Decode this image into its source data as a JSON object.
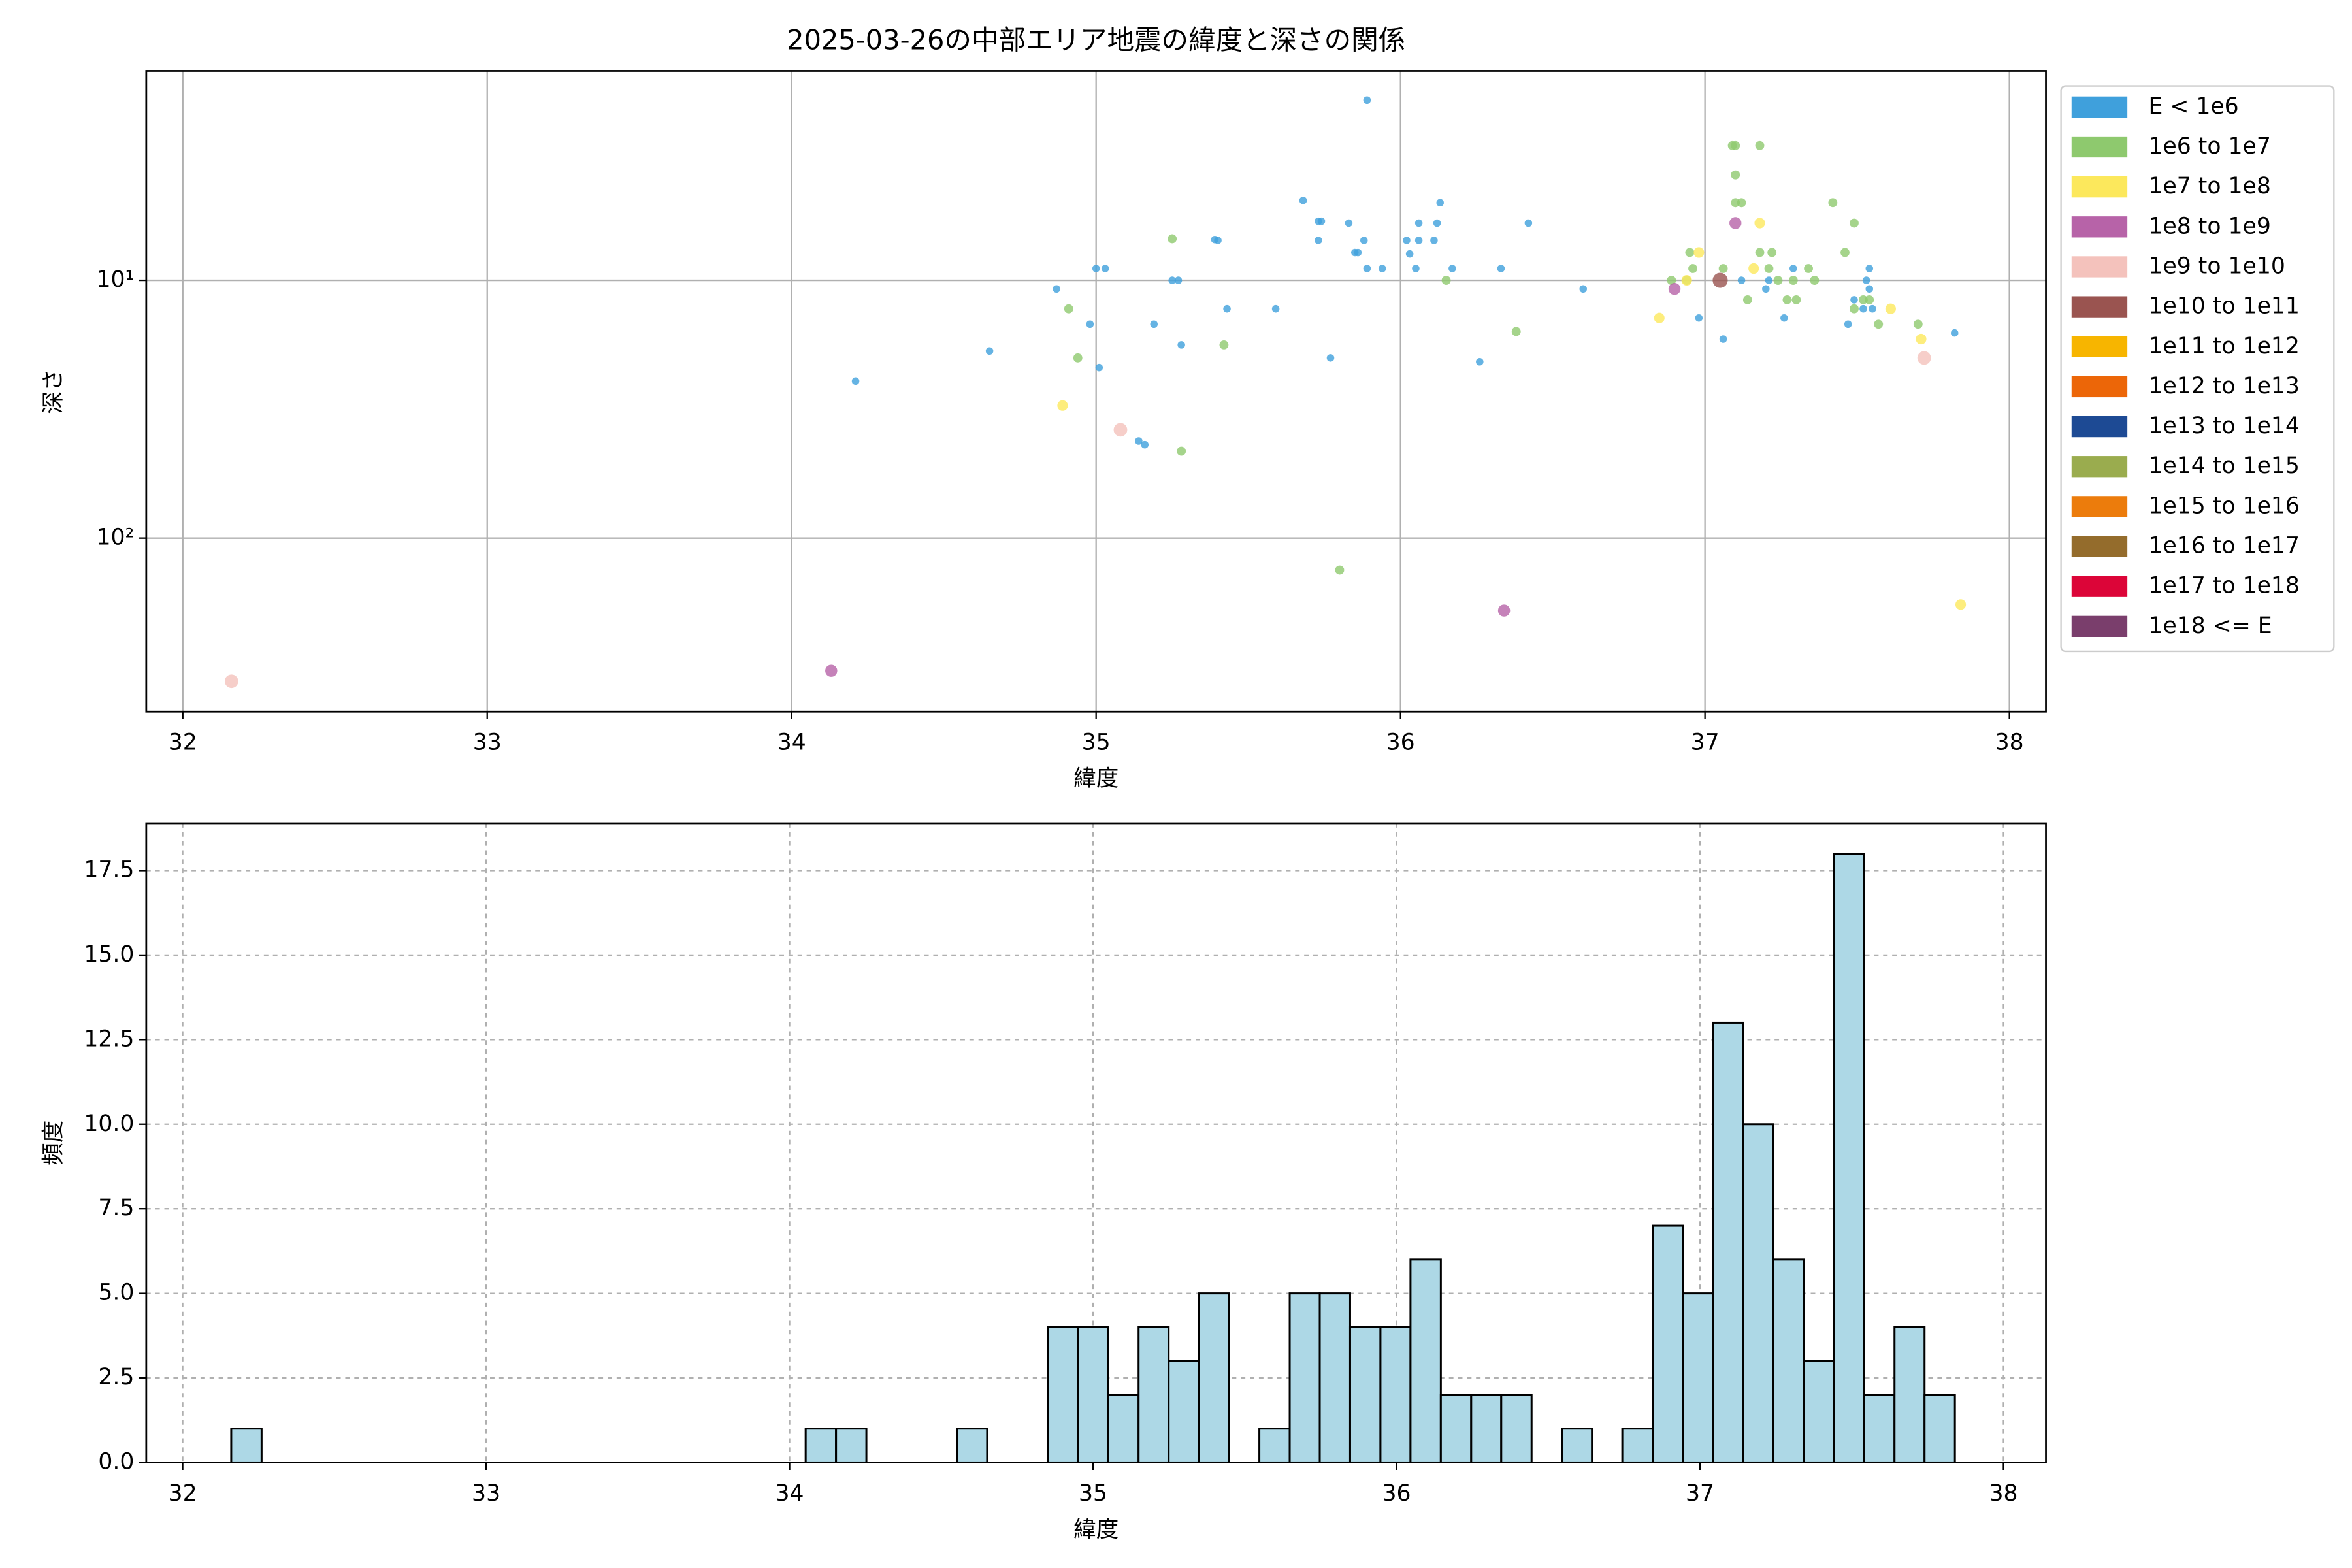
{
  "chart_data": [
    {
      "type": "scatter",
      "title": "2025-03-26の中部エリア地震の緯度と深さの関係",
      "xlabel": "緯度",
      "ylabel": "深さ",
      "xlim": [
        31.88,
        38.12
      ],
      "xticks": [
        32,
        33,
        34,
        35,
        36,
        37,
        38
      ],
      "ylim": [
        471,
        1.54
      ],
      "yscale": "log",
      "yticks": [
        {
          "value": 10,
          "label": "10¹"
        },
        {
          "value": 100,
          "label": "10²"
        }
      ],
      "grid": "solid",
      "legend": "outside right upper",
      "series": [
        {
          "name": "E < 1e6",
          "color": "#3fa0dc",
          "x": [
            34.21,
            34.65,
            34.87,
            34.98,
            35.0,
            35.01,
            35.03,
            35.14,
            35.16,
            35.19,
            35.25,
            35.27,
            35.28,
            35.39,
            35.4,
            35.43,
            35.59,
            35.68,
            35.73,
            35.74,
            35.73,
            35.77,
            35.83,
            35.85,
            35.86,
            35.88,
            35.89,
            35.89,
            35.94,
            36.02,
            36.03,
            36.05,
            36.06,
            36.06,
            36.11,
            36.12,
            36.13,
            36.17,
            36.26,
            36.33,
            36.42,
            36.6,
            36.98,
            37.06,
            37.12,
            37.2,
            37.21,
            37.26,
            37.29,
            37.47,
            37.49,
            37.53,
            37.54,
            37.54,
            37.55,
            37.52,
            37.82
          ],
          "y": [
            24.6,
            18.8,
            10.8,
            14.8,
            9.0,
            21.8,
            9.0,
            42,
            43.4,
            14.8,
            10,
            10,
            17.8,
            6.95,
            7.0,
            12.9,
            12.9,
            4.9,
            5.9,
            5.9,
            7.0,
            20,
            6.0,
            7.8,
            7.8,
            7.0,
            9.0,
            2.0,
            9.0,
            7.0,
            7.9,
            9.0,
            7.0,
            6.0,
            7.0,
            6.0,
            5.0,
            9.0,
            20.7,
            9.0,
            6.0,
            10.8,
            14.0,
            16.9,
            10,
            10.8,
            10,
            14.0,
            9.0,
            14.8,
            11.9,
            10,
            9.0,
            10.8,
            12.9,
            12.9,
            16.0
          ]
        },
        {
          "name": "1e6 to 1e7",
          "color": "#8ec96e",
          "x": [
            34.91,
            34.94,
            35.25,
            35.28,
            35.42,
            35.8,
            36.15,
            36.38,
            36.89,
            36.94,
            36.96,
            36.95,
            37.06,
            37.09,
            37.1,
            37.1,
            37.12,
            37.1,
            37.14,
            37.18,
            37.18,
            37.21,
            37.22,
            37.24,
            37.29,
            37.27,
            37.3,
            37.34,
            37.36,
            37.42,
            37.46,
            37.49,
            37.49,
            37.52,
            37.54,
            37.57,
            37.7
          ],
          "y": [
            12.9,
            20,
            6.9,
            46,
            17.8,
            133,
            10,
            15.8,
            10,
            10,
            9.0,
            7.8,
            9.0,
            3.0,
            3.9,
            5.0,
            5.0,
            3.0,
            11.9,
            7.8,
            3.0,
            9.0,
            7.8,
            10,
            10,
            11.9,
            11.9,
            9.0,
            10,
            5.0,
            7.8,
            6.0,
            12.9,
            11.9,
            11.9,
            14.8,
            14.8
          ]
        },
        {
          "name": "1e7 to 1e8",
          "color": "#fce85c",
          "x": [
            34.89,
            36.85,
            36.98,
            36.94,
            37.16,
            37.18,
            37.61,
            37.71,
            37.84
          ],
          "y": [
            30.6,
            14.0,
            7.8,
            10,
            9.0,
            6.0,
            12.9,
            16.9,
            181
          ]
        },
        {
          "name": "1e8 to 1e9",
          "color": "#b763a8",
          "x": [
            34.13,
            36.34,
            36.9,
            37.1
          ],
          "y": [
            327,
            191,
            10.8,
            6.0
          ]
        },
        {
          "name": "1e9 to 1e10",
          "color": "#f4c2bc",
          "x": [
            32.16,
            35.08,
            37.72
          ],
          "y": [
            359,
            38,
            20
          ]
        },
        {
          "name": "1e10 to 1e11",
          "color": "#9a5450",
          "x": [
            37.05
          ],
          "y": [
            10
          ]
        },
        {
          "name": "1e11 to 1e12",
          "color": "#f7b500",
          "x": [],
          "y": []
        },
        {
          "name": "1e12 to 1e13",
          "color": "#ec6608",
          "x": [],
          "y": []
        },
        {
          "name": "1e13 to 1e14",
          "color": "#1d4a94",
          "x": [],
          "y": []
        },
        {
          "name": "1e14 to 1e15",
          "color": "#9aac4e",
          "x": [],
          "y": []
        },
        {
          "name": "1e15 to 1e16",
          "color": "#ec7c0c",
          "x": [],
          "y": []
        },
        {
          "name": "1e16 to 1e17",
          "color": "#946c2c",
          "x": [],
          "y": []
        },
        {
          "name": "1e17 to 1e18",
          "color": "#dc0538",
          "x": [],
          "y": []
        },
        {
          "name": "1e18 <= E",
          "color": "#7a3e6c",
          "x": [],
          "y": []
        }
      ]
    },
    {
      "type": "histogram",
      "xlabel": "緯度",
      "ylabel": "頻度",
      "color": "#add8e6",
      "edgecolor": "#000000",
      "xlim": [
        31.88,
        38.14
      ],
      "xticks": [
        32,
        33,
        34,
        35,
        36,
        37,
        38
      ],
      "ylim": [
        0,
        18.9
      ],
      "yticks": [
        {
          "value": 0,
          "label": "0.0"
        },
        2.5,
        {
          "value": 5,
          "label": "5.0"
        },
        7.5,
        {
          "value": 10,
          "label": "10.0"
        },
        12.5,
        {
          "value": 15,
          "label": "15.0"
        },
        17.5
      ],
      "grid": "dashed",
      "bins": [
        32.16,
        32.26,
        32.359,
        32.459,
        32.559,
        32.658,
        32.758,
        32.858,
        32.957,
        33.057,
        33.157,
        33.256,
        33.356,
        33.455,
        33.555,
        33.655,
        33.754,
        33.854,
        33.954,
        34.053,
        34.153,
        34.253,
        34.352,
        34.452,
        34.552,
        34.651,
        34.751,
        34.851,
        34.95,
        35.05,
        35.15,
        35.249,
        35.349,
        35.448,
        35.548,
        35.648,
        35.747,
        35.847,
        35.947,
        36.046,
        36.146,
        36.246,
        36.345,
        36.445,
        36.545,
        36.644,
        36.744,
        36.844,
        36.943,
        37.043,
        37.143,
        37.242,
        37.342,
        37.441,
        37.541,
        37.641,
        37.74,
        37.84
      ],
      "values": [
        1,
        0,
        0,
        0,
        0,
        0,
        0,
        0,
        0,
        0,
        0,
        0,
        0,
        0,
        0,
        0,
        0,
        0,
        0,
        1,
        1,
        0,
        0,
        0,
        1,
        0,
        0,
        4,
        4,
        2,
        4,
        3,
        5,
        0,
        1,
        5,
        5,
        4,
        4,
        6,
        2,
        2,
        2,
        0,
        1,
        0,
        1,
        7,
        5,
        13,
        10,
        6,
        3,
        18,
        2,
        4,
        2
      ]
    }
  ]
}
